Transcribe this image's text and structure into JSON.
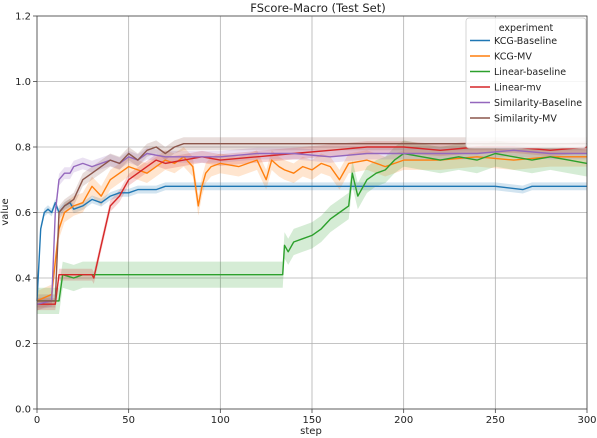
{
  "chart_data": {
    "type": "line",
    "title": "FScore-Macro (Test Set)",
    "xlabel": "step",
    "ylabel": "value",
    "xlim": [
      0,
      300
    ],
    "ylim": [
      0.0,
      1.2
    ],
    "xticks": [
      0,
      50,
      100,
      150,
      200,
      250,
      300
    ],
    "yticks": [
      "0.0",
      "0.2",
      "0.4",
      "0.6",
      "0.8",
      "1.0",
      "1.2"
    ],
    "grid": true,
    "legend": {
      "title": "experiment",
      "placement": "top-right"
    },
    "series": [
      {
        "name": "KCG-Baseline",
        "color": "#1f77b4",
        "band": 0.012,
        "x": [
          0,
          2,
          4,
          6,
          8,
          10,
          12,
          15,
          18,
          20,
          25,
          30,
          35,
          40,
          45,
          50,
          55,
          60,
          65,
          70,
          75,
          80,
          100,
          150,
          200,
          250,
          265,
          270,
          300
        ],
        "y": [
          0.33,
          0.55,
          0.6,
          0.61,
          0.6,
          0.63,
          0.6,
          0.62,
          0.63,
          0.61,
          0.62,
          0.64,
          0.63,
          0.65,
          0.66,
          0.66,
          0.67,
          0.67,
          0.67,
          0.68,
          0.68,
          0.68,
          0.68,
          0.68,
          0.68,
          0.68,
          0.67,
          0.68,
          0.68
        ]
      },
      {
        "name": "KCG-MV",
        "color": "#ff7f0e",
        "band": 0.03,
        "x": [
          0,
          8,
          10,
          12,
          15,
          20,
          25,
          30,
          35,
          40,
          45,
          50,
          55,
          60,
          65,
          70,
          75,
          80,
          85,
          88,
          90,
          92,
          95,
          100,
          110,
          120,
          125,
          128,
          130,
          132,
          135,
          140,
          145,
          150,
          155,
          160,
          165,
          170,
          180,
          190,
          200,
          220,
          240,
          260,
          280,
          300
        ],
        "y": [
          0.33,
          0.35,
          0.45,
          0.55,
          0.6,
          0.62,
          0.63,
          0.68,
          0.65,
          0.7,
          0.72,
          0.74,
          0.73,
          0.72,
          0.74,
          0.76,
          0.75,
          0.77,
          0.74,
          0.62,
          0.68,
          0.72,
          0.74,
          0.75,
          0.74,
          0.76,
          0.7,
          0.76,
          0.75,
          0.74,
          0.73,
          0.72,
          0.74,
          0.73,
          0.75,
          0.74,
          0.7,
          0.75,
          0.76,
          0.74,
          0.76,
          0.76,
          0.77,
          0.76,
          0.77,
          0.77
        ]
      },
      {
        "name": "Linear-baseline",
        "color": "#2ca02c",
        "band": 0.04,
        "x": [
          0,
          12,
          14,
          20,
          25,
          30,
          40,
          50,
          70,
          100,
          120,
          134,
          135,
          137,
          140,
          145,
          150,
          155,
          160,
          165,
          170,
          172,
          175,
          178,
          180,
          185,
          190,
          195,
          200,
          210,
          220,
          230,
          240,
          250,
          260,
          270,
          280,
          290,
          300
        ],
        "y": [
          0.33,
          0.33,
          0.41,
          0.4,
          0.41,
          0.41,
          0.41,
          0.41,
          0.41,
          0.41,
          0.41,
          0.41,
          0.5,
          0.48,
          0.51,
          0.52,
          0.53,
          0.55,
          0.58,
          0.6,
          0.62,
          0.72,
          0.65,
          0.68,
          0.7,
          0.72,
          0.73,
          0.76,
          0.78,
          0.77,
          0.76,
          0.77,
          0.76,
          0.78,
          0.77,
          0.76,
          0.77,
          0.76,
          0.75
        ]
      },
      {
        "name": "Linear-mv",
        "color": "#d62728",
        "band": 0.018,
        "x": [
          0,
          10,
          12,
          15,
          20,
          25,
          30,
          31,
          35,
          40,
          45,
          50,
          55,
          60,
          65,
          70,
          80,
          90,
          100,
          120,
          140,
          160,
          180,
          200,
          220,
          240,
          260,
          280,
          300
        ],
        "y": [
          0.32,
          0.32,
          0.41,
          0.41,
          0.41,
          0.41,
          0.41,
          0.4,
          0.5,
          0.62,
          0.65,
          0.7,
          0.72,
          0.74,
          0.76,
          0.75,
          0.76,
          0.77,
          0.76,
          0.77,
          0.78,
          0.79,
          0.8,
          0.8,
          0.79,
          0.8,
          0.8,
          0.79,
          0.8
        ]
      },
      {
        "name": "Similarity-Baseline",
        "color": "#9467bd",
        "band": 0.018,
        "x": [
          0,
          8,
          10,
          12,
          15,
          18,
          20,
          25,
          30,
          35,
          40,
          45,
          50,
          55,
          60,
          70,
          80,
          100,
          120,
          140,
          160,
          180,
          200,
          220,
          240,
          260,
          280,
          300
        ],
        "y": [
          0.32,
          0.33,
          0.6,
          0.7,
          0.72,
          0.72,
          0.74,
          0.75,
          0.74,
          0.75,
          0.76,
          0.75,
          0.77,
          0.76,
          0.78,
          0.77,
          0.77,
          0.77,
          0.78,
          0.78,
          0.77,
          0.78,
          0.78,
          0.78,
          0.78,
          0.79,
          0.78,
          0.78
        ]
      },
      {
        "name": "Similarity-MV",
        "color": "#8c564b",
        "band": 0.02,
        "x": [
          0,
          10,
          12,
          15,
          20,
          25,
          30,
          35,
          40,
          45,
          50,
          55,
          60,
          65,
          70,
          75,
          80,
          90,
          100,
          120,
          150,
          200,
          250,
          300
        ],
        "y": [
          0.33,
          0.33,
          0.6,
          0.62,
          0.64,
          0.7,
          0.72,
          0.74,
          0.76,
          0.75,
          0.78,
          0.76,
          0.79,
          0.8,
          0.78,
          0.8,
          0.81,
          0.81,
          0.81,
          0.81,
          0.81,
          0.81,
          0.81,
          0.81
        ]
      }
    ]
  }
}
